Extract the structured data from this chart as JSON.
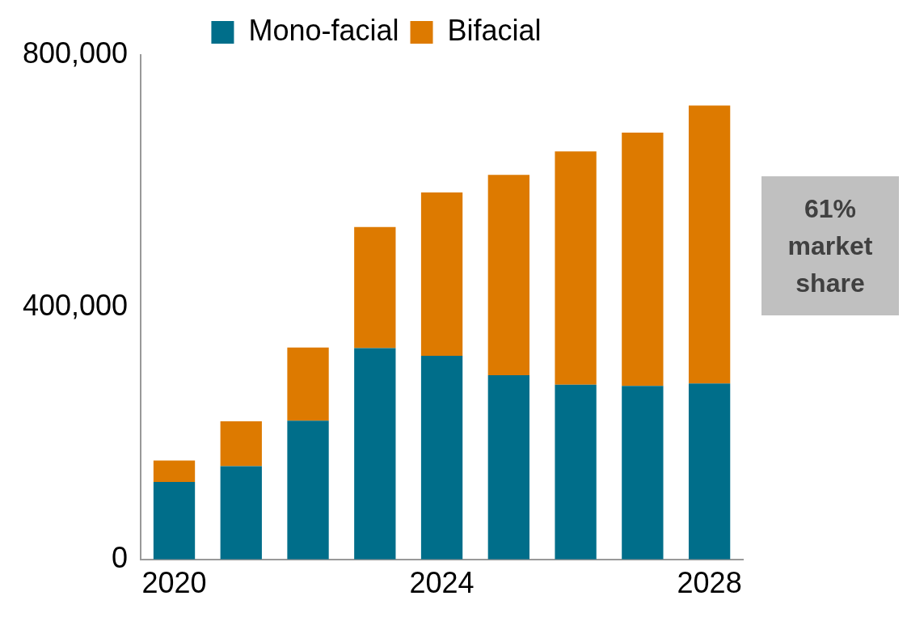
{
  "chart_data": {
    "type": "bar",
    "stacked": true,
    "categories": [
      "2020",
      null,
      null,
      null,
      "2024",
      null,
      null,
      null,
      "2028"
    ],
    "series": [
      {
        "name": "Mono-facial",
        "color": "#006e8a",
        "values": [
          123000,
          148000,
          220000,
          335000,
          323000,
          292000,
          277000,
          275000,
          279000
        ]
      },
      {
        "name": "Bifacial",
        "color": "#dd7a00",
        "values": [
          34000,
          71000,
          116000,
          192000,
          259000,
          318000,
          370000,
          402000,
          441000
        ]
      }
    ],
    "ylim": [
      0,
      800000
    ],
    "yticks": [
      0,
      {
        "value": 400000,
        "label": "400,000"
      },
      {
        "value": 800000,
        "label": "800,000"
      }
    ],
    "grid": false,
    "legend": "top",
    "annotations": [
      "61% market share"
    ]
  }
}
